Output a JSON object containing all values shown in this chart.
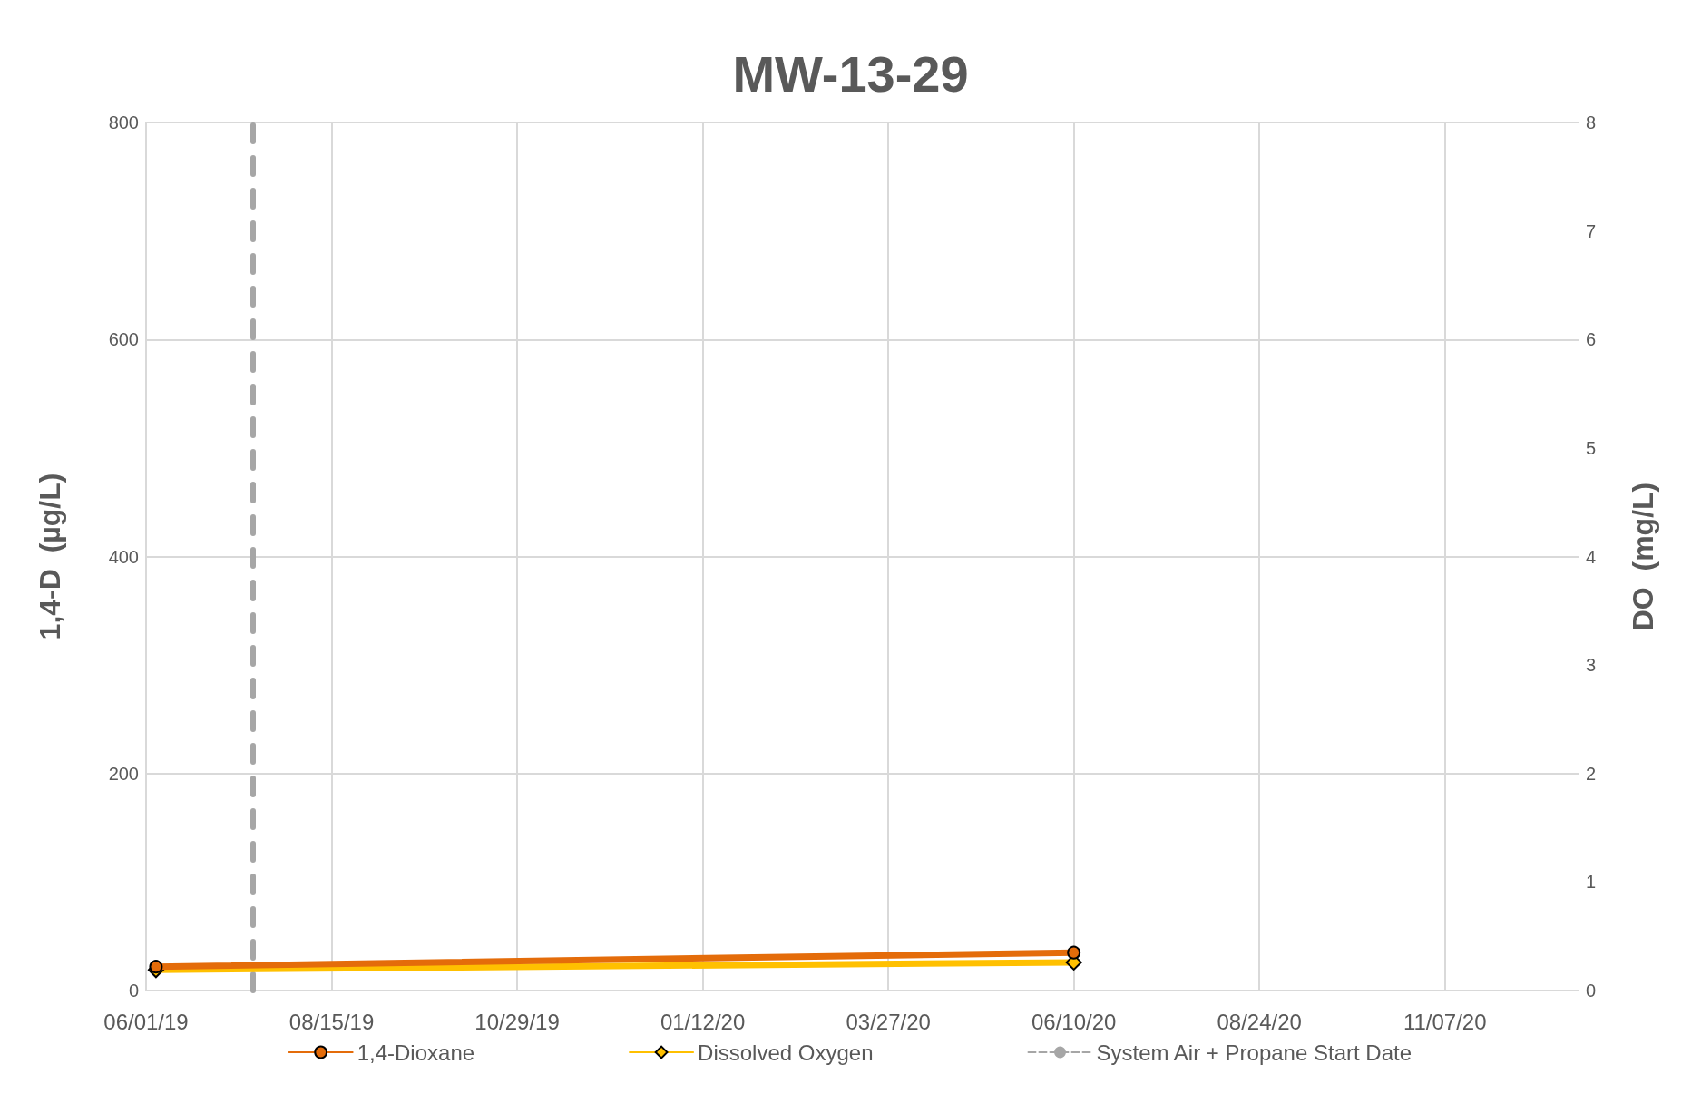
{
  "chart_data": {
    "type": "line",
    "title": "MW-13-29",
    "ylabel": "1,4-D  (µg/L)",
    "y2label": "DO  (mg/L)",
    "x": [
      "2019-06-05",
      "2020-06-10"
    ],
    "series": [
      {
        "name": "1,4-Dioxane",
        "color": "#e46c0a",
        "values": [
          22,
          35
        ],
        "marker": "circle",
        "line_style": "solid"
      },
      {
        "name": "Dissolved Oxygen",
        "color": "#ffc000",
        "values": [
          0.19,
          0.26
        ],
        "marker": "diamond",
        "line_style": "solid",
        "axis": "y2"
      }
    ],
    "xlim": [
      "2019-06-01",
      "2020-12-31"
    ],
    "xticks": [
      {
        "value": "2019-06-01",
        "label": "06/01/19"
      },
      {
        "value": "2019-08-15",
        "label": "08/15/19"
      },
      {
        "value": "2019-10-29",
        "label": "10/29/19"
      },
      {
        "value": "2020-01-12",
        "label": "01/12/20"
      },
      {
        "value": "2020-03-27",
        "label": "03/27/20"
      },
      {
        "value": "2020-06-10",
        "label": "06/10/20"
      },
      {
        "value": "2020-08-24",
        "label": "08/24/20"
      },
      {
        "value": "2020-11-07",
        "label": "11/07/20"
      }
    ],
    "ylim": [
      0,
      800
    ],
    "yticks": [
      0,
      200,
      400,
      600,
      800
    ],
    "y2lim": [
      0,
      8
    ],
    "y2ticks": [
      0,
      1,
      2,
      3,
      4,
      5,
      6,
      7,
      8
    ],
    "ref_lines": [
      {
        "axis": "x",
        "value": "2019-07-14",
        "label": "System Air + Propane Start Date",
        "color": "#a6a6a6",
        "line_style": "dashed"
      }
    ],
    "grid": true,
    "legend": "bottom"
  }
}
